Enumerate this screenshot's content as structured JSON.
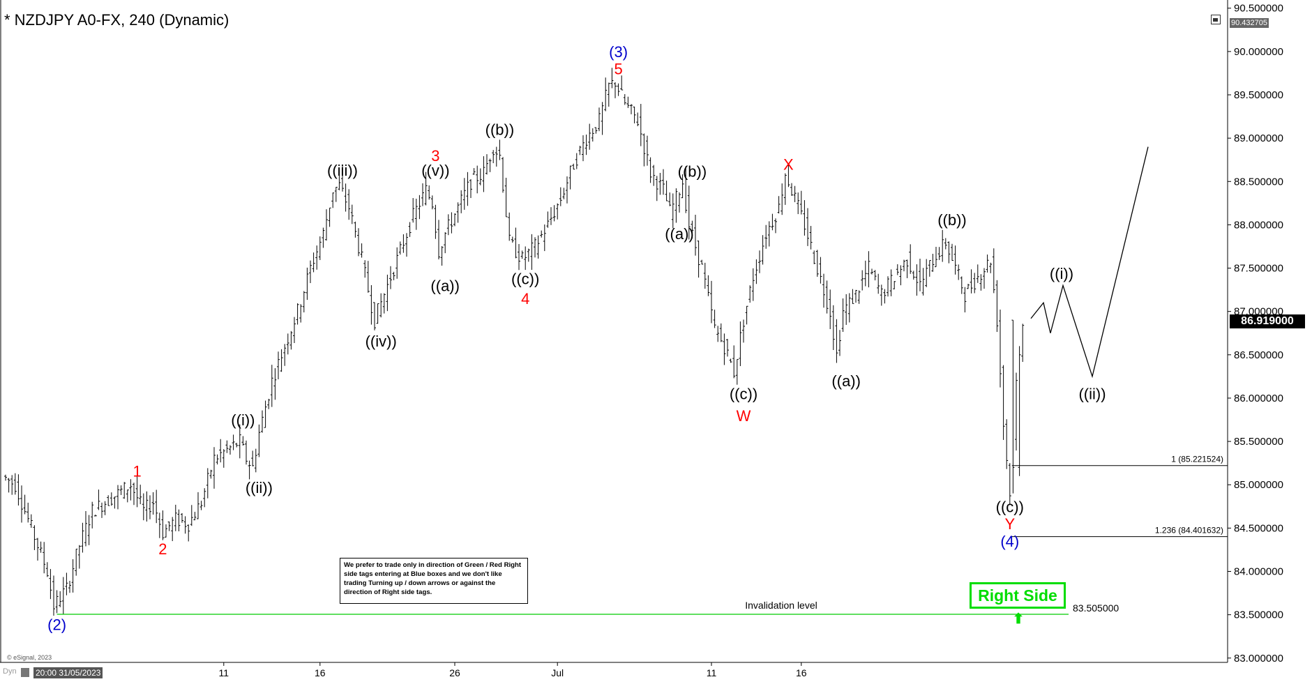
{
  "title": "* NZDJPY A0-FX, 240 (Dynamic)",
  "top_price_label": "90.432705",
  "current_price_label": "86.919000",
  "copyright": "© eSignal, 2023",
  "bottom_left_dyn": "Dyn",
  "bottom_timestamp": "20:00 31/05/2023",
  "note": "We prefer to trade only in direction of Green / Red Right side tags entering at Blue boxes and we don't like trading Turning up / down arrows or against the direction of Right side tags.",
  "right_side_tag": "Right Side",
  "invalidation_label": "Invalidation level",
  "invalidation_value": "83.505000",
  "colors": {
    "wave_black": "#000000",
    "wave_red": "#ff0000",
    "wave_blue": "#0000cc",
    "invalidation_line": "#00cc00",
    "right_side": "#00dd00"
  },
  "icons": {
    "right_side_arrow": "up-arrow-icon",
    "panel_toggle": "window-icon"
  },
  "chart_data": {
    "type": "ohlc",
    "y_ticks": [
      "90.500000",
      "90.000000",
      "89.500000",
      "89.000000",
      "88.500000",
      "88.000000",
      "87.500000",
      "87.000000",
      "86.500000",
      "86.000000",
      "85.500000",
      "85.000000",
      "84.500000",
      "84.000000",
      "83.500000",
      "83.000000"
    ],
    "y_tick_values": [
      90.5,
      90.0,
      89.5,
      89.0,
      88.5,
      88.0,
      87.5,
      87.0,
      86.5,
      86.0,
      85.5,
      85.0,
      84.5,
      84.0,
      83.5,
      83.0
    ],
    "ylim": [
      82.95,
      90.53
    ],
    "x_ticks": [
      {
        "label": "11",
        "bar": 68
      },
      {
        "label": "16",
        "bar": 98
      },
      {
        "label": "26",
        "bar": 140
      },
      {
        "label": "Jul",
        "bar": 172
      },
      {
        "label": "11",
        "bar": 220
      },
      {
        "label": "16",
        "bar": 248
      }
    ],
    "bars_count": 318,
    "price_path": [
      [
        0,
        85.1
      ],
      [
        4,
        85.0
      ],
      [
        10,
        84.4
      ],
      [
        14,
        84.0
      ],
      [
        16,
        83.6
      ],
      [
        20,
        83.8
      ],
      [
        24,
        84.3
      ],
      [
        28,
        84.7
      ],
      [
        32,
        84.8
      ],
      [
        36,
        84.9
      ],
      [
        40,
        85.0
      ],
      [
        44,
        84.7
      ],
      [
        47,
        84.8
      ],
      [
        50,
        84.45
      ],
      [
        54,
        84.6
      ],
      [
        58,
        84.55
      ],
      [
        62,
        84.8
      ],
      [
        66,
        85.3
      ],
      [
        70,
        85.4
      ],
      [
        74,
        85.5
      ],
      [
        76,
        85.3
      ],
      [
        78,
        85.2
      ],
      [
        80,
        85.6
      ],
      [
        84,
        86.2
      ],
      [
        88,
        86.6
      ],
      [
        92,
        87.0
      ],
      [
        96,
        87.5
      ],
      [
        100,
        87.9
      ],
      [
        103,
        88.4
      ],
      [
        105,
        88.45
      ],
      [
        108,
        88.2
      ],
      [
        112,
        87.6
      ],
      [
        116,
        86.9
      ],
      [
        120,
        87.3
      ],
      [
        124,
        87.7
      ],
      [
        128,
        88.1
      ],
      [
        132,
        88.4
      ],
      [
        134,
        88.25
      ],
      [
        136,
        87.7
      ],
      [
        138,
        87.9
      ],
      [
        142,
        88.2
      ],
      [
        146,
        88.5
      ],
      [
        150,
        88.6
      ],
      [
        153,
        88.9
      ],
      [
        155,
        88.8
      ],
      [
        158,
        87.8
      ],
      [
        162,
        87.6
      ],
      [
        166,
        87.75
      ],
      [
        170,
        88.0
      ],
      [
        174,
        88.3
      ],
      [
        178,
        88.7
      ],
      [
        182,
        89.0
      ],
      [
        186,
        89.2
      ],
      [
        189,
        89.6
      ],
      [
        191,
        89.65
      ],
      [
        194,
        89.4
      ],
      [
        198,
        89.2
      ],
      [
        202,
        88.6
      ],
      [
        206,
        88.4
      ],
      [
        208,
        88.15
      ],
      [
        210,
        88.3
      ],
      [
        212,
        88.5
      ],
      [
        214,
        88.0
      ],
      [
        218,
        87.5
      ],
      [
        222,
        86.8
      ],
      [
        225,
        86.6
      ],
      [
        228,
        86.3
      ],
      [
        231,
        86.9
      ],
      [
        234,
        87.4
      ],
      [
        238,
        87.9
      ],
      [
        242,
        88.2
      ],
      [
        244,
        88.6
      ],
      [
        246,
        88.4
      ],
      [
        250,
        88.0
      ],
      [
        254,
        87.5
      ],
      [
        258,
        87.0
      ],
      [
        260,
        86.5
      ],
      [
        262,
        87.0
      ],
      [
        266,
        87.2
      ],
      [
        270,
        87.5
      ],
      [
        274,
        87.2
      ],
      [
        278,
        87.4
      ],
      [
        282,
        87.6
      ],
      [
        286,
        87.3
      ],
      [
        290,
        87.6
      ],
      [
        294,
        87.8
      ],
      [
        296,
        87.6
      ],
      [
        300,
        87.2
      ],
      [
        304,
        87.4
      ],
      [
        308,
        87.6
      ],
      [
        310,
        86.9
      ],
      [
        312,
        85.7
      ],
      [
        314,
        84.9
      ],
      [
        316,
        86.2
      ],
      [
        318,
        86.9
      ]
    ],
    "projection": [
      {
        "x": 1478,
        "y": 86.919
      },
      {
        "x": 1496,
        "y": 87.1
      },
      {
        "x": 1506,
        "y": 86.75
      },
      {
        "x": 1524,
        "y": 87.3
      },
      {
        "x": 1566,
        "y": 86.25
      },
      {
        "x": 1646,
        "y": 88.9
      }
    ],
    "extra_ohlc": [
      {
        "bar": 314,
        "open": 86.9,
        "high": 86.9,
        "low": 84.9,
        "close": 85.2
      },
      {
        "bar": 316,
        "open": 85.2,
        "high": 86.6,
        "low": 85.1,
        "close": 86.5
      },
      {
        "bar": 318,
        "open": 86.5,
        "high": 86.9,
        "low": 86.4,
        "close": 86.9
      }
    ],
    "wave_labels": [
      {
        "text": "(2)",
        "bar": 16,
        "y": 83.39,
        "color": "blue"
      },
      {
        "text": "1",
        "bar": 41,
        "y": 85.16,
        "color": "red"
      },
      {
        "text": "2",
        "bar": 49,
        "y": 84.26,
        "color": "red"
      },
      {
        "text": "((i))",
        "bar": 74,
        "y": 85.75,
        "color": "black"
      },
      {
        "text": "((ii))",
        "bar": 79,
        "y": 84.97,
        "color": "black"
      },
      {
        "text": "((iii))",
        "bar": 105,
        "y": 88.63,
        "color": "black"
      },
      {
        "text": "((iv))",
        "bar": 117,
        "y": 86.66,
        "color": "black"
      },
      {
        "text": "3",
        "bar": 134,
        "y": 88.8,
        "color": "red"
      },
      {
        "text": "((v))",
        "bar": 134,
        "y": 88.63,
        "color": "black"
      },
      {
        "text": "((a))",
        "bar": 137,
        "y": 87.3,
        "color": "black"
      },
      {
        "text": "((b))",
        "bar": 154,
        "y": 89.1,
        "color": "black"
      },
      {
        "text": "((c))",
        "bar": 162,
        "y": 87.38,
        "color": "black"
      },
      {
        "text": "4",
        "bar": 162,
        "y": 87.15,
        "color": "red"
      },
      {
        "text": "(3)",
        "bar": 191,
        "y": 90.0,
        "color": "blue"
      },
      {
        "text": "5",
        "bar": 191,
        "y": 89.8,
        "color": "red"
      },
      {
        "text": "((b))",
        "bar": 214,
        "y": 88.62,
        "color": "black"
      },
      {
        "text": "((a))",
        "bar": 210,
        "y": 87.9,
        "color": "black"
      },
      {
        "text": "((c))",
        "bar": 230,
        "y": 86.05,
        "color": "black"
      },
      {
        "text": "W",
        "bar": 230,
        "y": 85.8,
        "color": "red"
      },
      {
        "text": "X",
        "bar": 244,
        "y": 88.7,
        "color": "red"
      },
      {
        "text": "((a))",
        "bar": 262,
        "y": 86.2,
        "color": "black"
      },
      {
        "text": "((b))",
        "bar": 295,
        "y": 88.06,
        "color": "black"
      },
      {
        "text": "((c))",
        "bar": 313,
        "y": 84.75,
        "color": "black"
      },
      {
        "text": "Y",
        "bar": 313,
        "y": 84.55,
        "color": "red"
      },
      {
        "text": "(4)",
        "bar": 313,
        "y": 84.35,
        "color": "blue"
      },
      {
        "x": 1522,
        "text": "((i))",
        "y": 87.44,
        "color": "black"
      },
      {
        "x": 1566,
        "text": "((ii))",
        "y": 86.05,
        "color": "black"
      }
    ],
    "fib_levels": [
      {
        "label": "1 (85.221524)",
        "value": 85.221524
      },
      {
        "label": "1.236 (84.401632)",
        "value": 84.401632
      }
    ],
    "invalidation": {
      "value": 83.505
    }
  }
}
